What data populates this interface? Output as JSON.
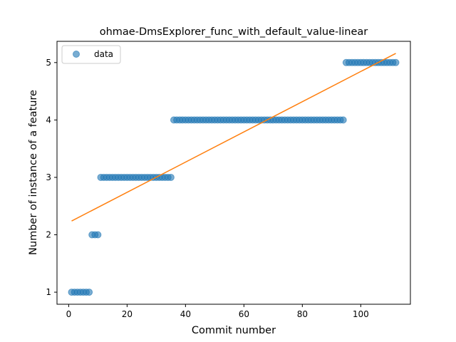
{
  "chart_data": {
    "type": "scatter",
    "title": "ohmae-DmsExplorer_func_with_default_value-linear",
    "xlabel": "Commit number",
    "ylabel": "Number of instance of a feature",
    "xlim": [
      -4,
      117
    ],
    "ylim": [
      0.79,
      5.37
    ],
    "xticks": [
      0,
      20,
      40,
      60,
      80,
      100
    ],
    "yticks": [
      1,
      2,
      3,
      4,
      5
    ],
    "grid": false,
    "legend_position": "top-left",
    "series": [
      {
        "name": "data",
        "kind": "scatter",
        "color": "#1f77b4",
        "x": [
          1,
          2,
          3,
          4,
          5,
          6,
          7,
          8,
          9,
          10,
          11,
          12,
          13,
          14,
          15,
          16,
          17,
          18,
          19,
          20,
          21,
          22,
          23,
          24,
          25,
          26,
          27,
          28,
          29,
          30,
          31,
          32,
          33,
          34,
          35,
          36,
          37,
          38,
          39,
          40,
          41,
          42,
          43,
          44,
          45,
          46,
          47,
          48,
          49,
          50,
          51,
          52,
          53,
          54,
          55,
          56,
          57,
          58,
          59,
          60,
          61,
          62,
          63,
          64,
          65,
          66,
          67,
          68,
          69,
          70,
          71,
          72,
          73,
          74,
          75,
          76,
          77,
          78,
          79,
          80,
          81,
          82,
          83,
          84,
          85,
          86,
          87,
          88,
          89,
          90,
          91,
          92,
          93,
          94,
          95,
          96,
          97,
          98,
          99,
          100,
          101,
          102,
          103,
          104,
          105,
          106,
          107,
          108,
          109,
          110,
          111,
          112
        ],
        "y": [
          1,
          1,
          1,
          1,
          1,
          1,
          1,
          2,
          2,
          2,
          3,
          3,
          3,
          3,
          3,
          3,
          3,
          3,
          3,
          3,
          3,
          3,
          3,
          3,
          3,
          3,
          3,
          3,
          3,
          3,
          3,
          3,
          3,
          3,
          3,
          4,
          4,
          4,
          4,
          4,
          4,
          4,
          4,
          4,
          4,
          4,
          4,
          4,
          4,
          4,
          4,
          4,
          4,
          4,
          4,
          4,
          4,
          4,
          4,
          4,
          4,
          4,
          4,
          4,
          4,
          4,
          4,
          4,
          4,
          4,
          4,
          4,
          4,
          4,
          4,
          4,
          4,
          4,
          4,
          4,
          4,
          4,
          4,
          4,
          4,
          4,
          4,
          4,
          4,
          4,
          4,
          4,
          4,
          4,
          5,
          5,
          5,
          5,
          5,
          5,
          5,
          5,
          5,
          5,
          5,
          5,
          5,
          5,
          5,
          5,
          5,
          5
        ]
      },
      {
        "name": "",
        "kind": "line",
        "color": "#ff7f0e",
        "x": [
          1,
          112
        ],
        "y": [
          2.24,
          5.16
        ]
      }
    ]
  }
}
